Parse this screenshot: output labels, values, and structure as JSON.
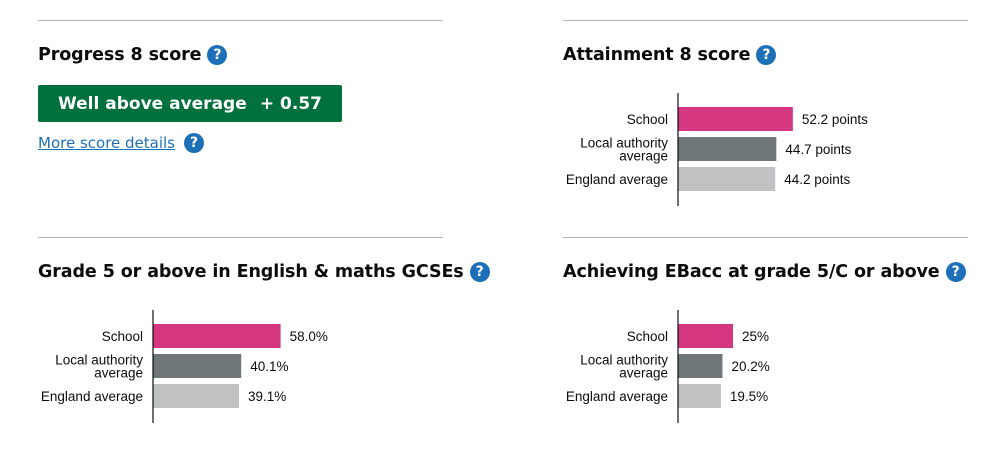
{
  "progress8": {
    "title": "Progress 8 score",
    "help_icon": "question-circle-icon",
    "band_label": "Well above average",
    "score": "+ 0.57",
    "band_color": "#00703c",
    "more_link": "More score details"
  },
  "attainment8": {
    "title": "Attainment 8 score",
    "help_icon": "question-circle-icon",
    "chart_data": {
      "type": "bar",
      "orientation": "horizontal",
      "categories": [
        "School",
        "Local authority average",
        "England average"
      ],
      "category_lines": [
        [
          "School"
        ],
        [
          "Local authority",
          "average"
        ],
        [
          "England average"
        ]
      ],
      "values": [
        52.2,
        44.7,
        44.2
      ],
      "value_labels": [
        "52.2 points",
        "44.7 points",
        "44.2 points"
      ],
      "colors": [
        "#d53880",
        "#6f777b",
        "#bfc1c3"
      ],
      "xlim": [
        0,
        100
      ]
    }
  },
  "grade5": {
    "title": "Grade 5 or above in English & maths GCSEs",
    "help_icon": "question-circle-icon",
    "chart_data": {
      "type": "bar",
      "orientation": "horizontal",
      "categories": [
        "School",
        "Local authority average",
        "England average"
      ],
      "category_lines": [
        [
          "School"
        ],
        [
          "Local authority",
          "average"
        ],
        [
          "England average"
        ]
      ],
      "values": [
        58.0,
        40.1,
        39.1
      ],
      "value_labels": [
        "58.0%",
        "40.1%",
        "39.1%"
      ],
      "colors": [
        "#d53880",
        "#6f777b",
        "#bfc1c3"
      ],
      "xlim": [
        0,
        100
      ]
    }
  },
  "ebacc": {
    "title": "Achieving EBacc at grade 5/C or above",
    "help_icon": "question-circle-icon",
    "chart_data": {
      "type": "bar",
      "orientation": "horizontal",
      "categories": [
        "School",
        "Local authority average",
        "England average"
      ],
      "category_lines": [
        [
          "School"
        ],
        [
          "Local authority",
          "average"
        ],
        [
          "England average"
        ]
      ],
      "values": [
        25,
        20.2,
        19.5
      ],
      "value_labels": [
        "25%",
        "20.2%",
        "19.5%"
      ],
      "colors": [
        "#d53880",
        "#6f777b",
        "#bfc1c3"
      ],
      "xlim": [
        0,
        100
      ]
    }
  }
}
